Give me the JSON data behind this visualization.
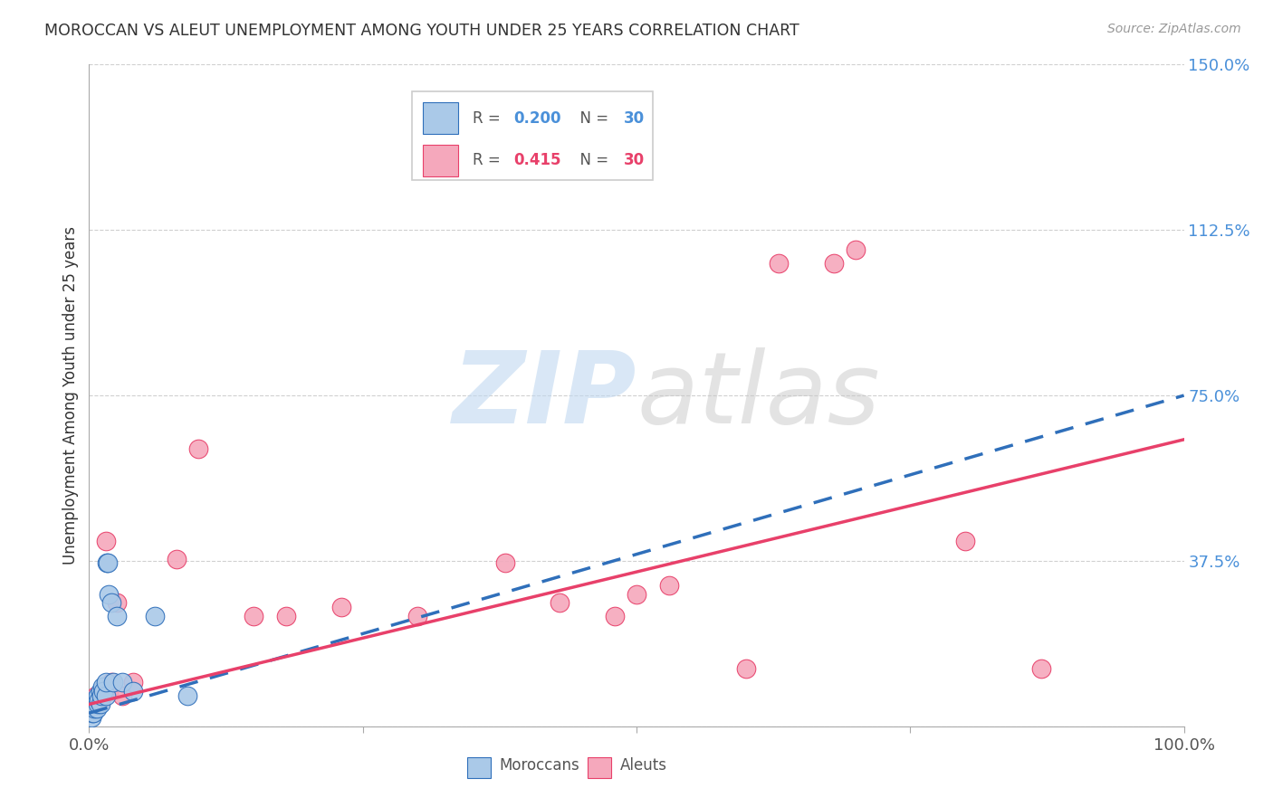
{
  "title": "MOROCCAN VS ALEUT UNEMPLOYMENT AMONG YOUTH UNDER 25 YEARS CORRELATION CHART",
  "source": "Source: ZipAtlas.com",
  "ylabel": "Unemployment Among Youth under 25 years",
  "xlim": [
    0,
    1.0
  ],
  "ylim": [
    0,
    1.5
  ],
  "xticks": [
    0.0,
    0.25,
    0.5,
    0.75,
    1.0
  ],
  "xticklabels": [
    "0.0%",
    "",
    "",
    "",
    "100.0%"
  ],
  "yticks": [
    0.0,
    0.375,
    0.75,
    1.125,
    1.5
  ],
  "yticklabels": [
    "",
    "37.5%",
    "75.0%",
    "112.5%",
    "150.0%"
  ],
  "moroccan_color": "#aac9e8",
  "aleut_color": "#f5a8bc",
  "moroccan_line_color": "#2f6fba",
  "aleut_line_color": "#e8406a",
  "moroccan_r": 0.2,
  "aleut_r": 0.415,
  "n": 30,
  "legend_moroccan_label": "Moroccans",
  "legend_aleut_label": "Aleuts",
  "background_color": "#ffffff",
  "watermark_zip_color": "#c0d8f0",
  "watermark_atlas_color": "#c8c8c8",
  "moroccan_x": [
    0.002,
    0.003,
    0.003,
    0.004,
    0.004,
    0.005,
    0.005,
    0.006,
    0.007,
    0.007,
    0.008,
    0.008,
    0.009,
    0.01,
    0.01,
    0.011,
    0.012,
    0.013,
    0.015,
    0.015,
    0.016,
    0.017,
    0.018,
    0.02,
    0.022,
    0.025,
    0.03,
    0.04,
    0.06,
    0.09
  ],
  "moroccan_y": [
    0.02,
    0.03,
    0.04,
    0.03,
    0.05,
    0.04,
    0.06,
    0.05,
    0.04,
    0.06,
    0.05,
    0.07,
    0.06,
    0.05,
    0.08,
    0.07,
    0.09,
    0.08,
    0.07,
    0.1,
    0.37,
    0.37,
    0.3,
    0.28,
    0.1,
    0.25,
    0.1,
    0.08,
    0.25,
    0.07
  ],
  "aleut_x": [
    0.002,
    0.003,
    0.005,
    0.006,
    0.008,
    0.01,
    0.012,
    0.015,
    0.018,
    0.02,
    0.025,
    0.03,
    0.04,
    0.08,
    0.1,
    0.15,
    0.18,
    0.23,
    0.3,
    0.38,
    0.43,
    0.48,
    0.5,
    0.53,
    0.6,
    0.63,
    0.68,
    0.7,
    0.8,
    0.87
  ],
  "aleut_y": [
    0.04,
    0.06,
    0.05,
    0.07,
    0.06,
    0.06,
    0.07,
    0.42,
    0.08,
    0.1,
    0.28,
    0.07,
    0.1,
    0.38,
    0.63,
    0.25,
    0.25,
    0.27,
    0.25,
    0.37,
    0.28,
    0.25,
    0.3,
    0.32,
    0.13,
    1.05,
    1.05,
    1.08,
    0.42,
    0.13
  ],
  "moroccan_line_x0": 0.0,
  "moroccan_line_y0": 0.03,
  "moroccan_line_x1": 1.0,
  "moroccan_line_y1": 0.75,
  "aleut_line_x0": 0.0,
  "aleut_line_y0": 0.05,
  "aleut_line_x1": 1.0,
  "aleut_line_y1": 0.65,
  "r_color_moroccan": "#4a90d9",
  "r_color_aleut": "#e8406a",
  "n_color_moroccan": "#4a90d9",
  "n_color_aleut": "#e8406a"
}
